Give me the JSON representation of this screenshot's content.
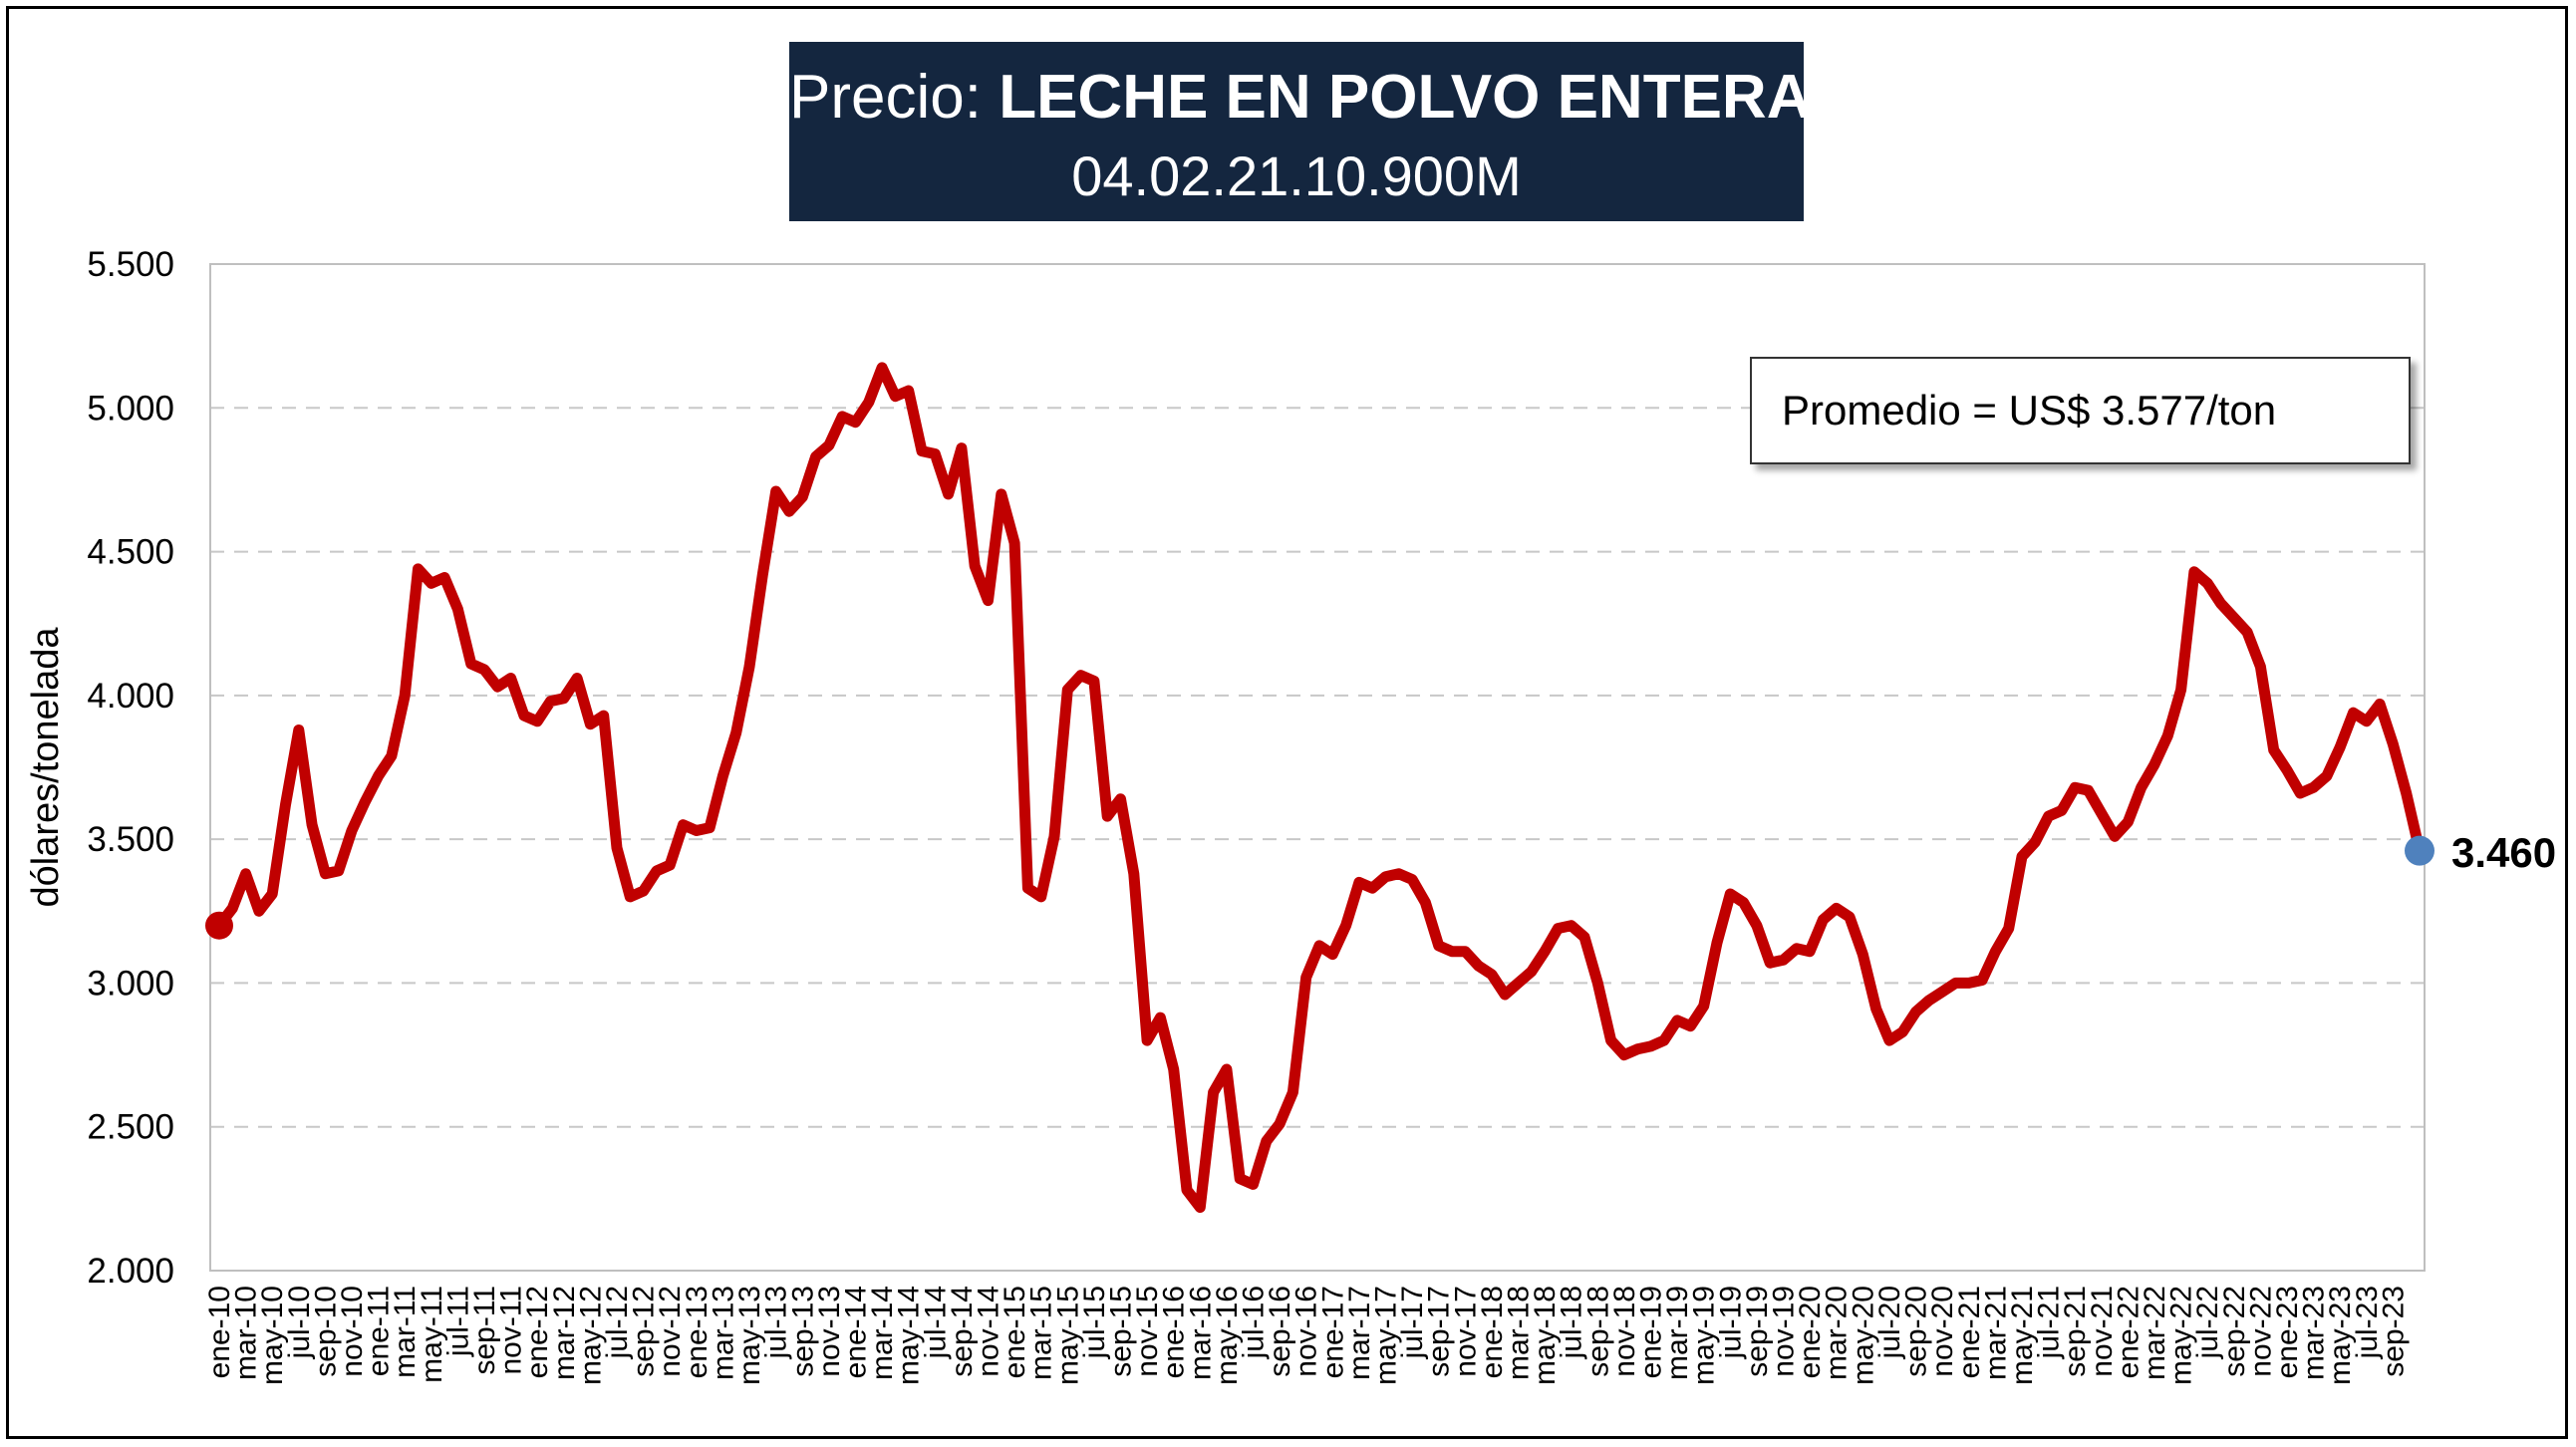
{
  "title": {
    "prefix": "Precio: ",
    "bold": "LECHE EN POLVO ENTERA",
    "code": "04.02.21.10.900M"
  },
  "annotation": {
    "average_text": "Promedio = US$ 3.577/ton"
  },
  "last_value_label": "3.460",
  "colors": {
    "line": "#c00000",
    "title_bg": "#14263f",
    "first_marker": "#c00000",
    "last_marker": "#4f81bd",
    "grid": "#c8c8c8"
  },
  "chart_data": {
    "type": "line",
    "ylabel": "dólares/tonelada",
    "ylim": [
      2000,
      5500
    ],
    "yticks": [
      2000,
      2500,
      3000,
      3500,
      4000,
      4500,
      5000,
      5500
    ],
    "ytick_labels": [
      "2.000",
      "2.500",
      "3.000",
      "3.500",
      "4.000",
      "4.500",
      "5.000",
      "5.500"
    ],
    "grid": "horizontal dashed",
    "x_tick_labels": [
      "ene-10",
      "mar-10",
      "may-10",
      "jul-10",
      "sep-10",
      "nov-10",
      "ene-11",
      "mar-11",
      "may-11",
      "jul-11",
      "sep-11",
      "nov-11",
      "ene-12",
      "mar-12",
      "may-12",
      "jul-12",
      "sep-12",
      "nov-12",
      "ene-13",
      "mar-13",
      "may-13",
      "jul-13",
      "sep-13",
      "nov-13",
      "ene-14",
      "mar-14",
      "may-14",
      "jul-14",
      "sep-14",
      "nov-14",
      "ene-15",
      "mar-15",
      "may-15",
      "jul-15",
      "sep-15",
      "nov-15",
      "ene-16",
      "mar-16",
      "may-16",
      "jul-16",
      "sep-16",
      "nov-16",
      "ene-17",
      "mar-17",
      "may-17",
      "jul-17",
      "sep-17",
      "nov-17",
      "ene-18",
      "mar-18",
      "may-18",
      "jul-18",
      "sep-18",
      "nov-18",
      "ene-19",
      "mar-19",
      "may-19",
      "jul-19",
      "sep-19",
      "nov-19",
      "ene-20",
      "mar-20",
      "may-20",
      "jul-20",
      "sep-20",
      "nov-20",
      "ene-21",
      "mar-21",
      "may-21",
      "jul-21",
      "sep-21",
      "nov-21",
      "ene-22",
      "mar-22",
      "may-22",
      "jul-22",
      "sep-22",
      "nov-22",
      "ene-23",
      "mar-23",
      "may-23",
      "jul-23",
      "sep-23"
    ],
    "series": [
      {
        "values": [
          3200,
          3260,
          3380,
          3250,
          3310,
          3620,
          3880,
          3550,
          3380,
          3390,
          3530,
          3630,
          3720,
          3790,
          4000,
          4440,
          4390,
          4410,
          4300,
          4110,
          4090,
          4030,
          4060,
          3930,
          3910,
          3980,
          3990,
          4060,
          3900,
          3930,
          3470,
          3300,
          3320,
          3390,
          3410,
          3550,
          3530,
          3540,
          3720,
          3870,
          4100,
          4420,
          4710,
          4640,
          4690,
          4830,
          4870,
          4970,
          4950,
          5020,
          5140,
          5040,
          5060,
          4850,
          4840,
          4700,
          4860,
          4450,
          4330,
          4700,
          4530,
          3330,
          3300,
          3510,
          4020,
          4070,
          4050,
          3580,
          3640,
          3380,
          2800,
          2880,
          2700,
          2280,
          2220,
          2620,
          2700,
          2320,
          2300,
          2450,
          2510,
          2620,
          3020,
          3130,
          3100,
          3200,
          3350,
          3330,
          3370,
          3380,
          3360,
          3280,
          3130,
          3110,
          3110,
          3060,
          3030,
          2960,
          3000,
          3040,
          3110,
          3190,
          3200,
          3160,
          3000,
          2800,
          2750,
          2770,
          2780,
          2800,
          2870,
          2850,
          2920,
          3140,
          3310,
          3280,
          3200,
          3070,
          3080,
          3120,
          3110,
          3220,
          3260,
          3230,
          3100,
          2910,
          2800,
          2830,
          2900,
          2940,
          2970,
          3000,
          3000,
          3010,
          3110,
          3190,
          3440,
          3490,
          3580,
          3600,
          3680,
          3670,
          3590,
          3510,
          3560,
          3680,
          3760,
          3860,
          4020,
          4430,
          4390,
          4320,
          4270,
          4220,
          4100,
          3810,
          3740,
          3660,
          3680,
          3720,
          3820,
          3940,
          3910,
          3970,
          3830,
          3660,
          3460
        ]
      }
    ]
  }
}
